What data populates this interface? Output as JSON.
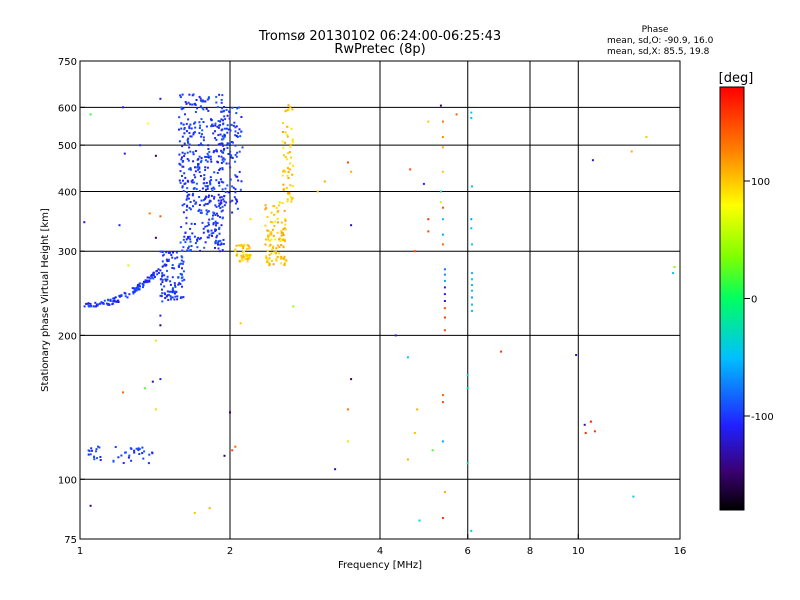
{
  "chart_data": {
    "type": "scatter",
    "title": "Tromsø 20130102 06:24:00-06:25:43",
    "subtitle": "RwPretec (8p)",
    "xlabel": "Frequency [MHz]",
    "ylabel": "Stationary phase Virtual Height [km]",
    "x_scale": "log",
    "y_scale": "log",
    "xlim": [
      1,
      16
    ],
    "ylim": [
      75,
      750
    ],
    "x_ticks": [
      1,
      2,
      4,
      6,
      8,
      10,
      16
    ],
    "y_ticks": [
      75,
      100,
      200,
      300,
      400,
      500,
      600,
      750
    ],
    "grid": true,
    "stats": {
      "heading": "Phase",
      "line_o": "mean, sd,O: -90.9, 16.0",
      "line_x": "mean, sd,X:  85.5, 19.8"
    },
    "colorbar": {
      "label": "[deg]",
      "range": [
        -180,
        180
      ],
      "ticks": [
        100,
        0,
        -100
      ],
      "tick_labels": [
        "100",
        "0",
        "-100"
      ]
    },
    "series": [
      {
        "phase_deg": -100,
        "clusters": [
          {
            "f_range": [
              1.02,
              1.45
            ],
            "h_range": [
              230,
              275
            ],
            "n": 120,
            "type": "trace"
          },
          {
            "f_range": [
              1.45,
              1.62
            ],
            "h_range": [
              235,
              300
            ],
            "n": 110,
            "type": "band"
          },
          {
            "f_range": [
              1.58,
              1.95
            ],
            "h_range": [
              300,
              640
            ],
            "n": 420,
            "type": "band"
          },
          {
            "f_range": [
              1.9,
              2.12
            ],
            "h_range": [
              360,
              600
            ],
            "n": 110,
            "type": "band"
          },
          {
            "f_range": [
              1.03,
              1.4
            ],
            "h_range": [
              108,
              117
            ],
            "n": 45,
            "type": "band"
          }
        ]
      },
      {
        "phase_deg": 100,
        "clusters": [
          {
            "f_range": [
              2.05,
              2.2
            ],
            "h_range": [
              285,
              310
            ],
            "n": 45,
            "type": "band"
          },
          {
            "f_range": [
              2.35,
              2.6
            ],
            "h_range": [
              280,
              380
            ],
            "n": 110,
            "type": "band"
          },
          {
            "f_range": [
              2.55,
              2.68
            ],
            "h_range": [
              380,
              620
            ],
            "n": 60,
            "type": "band"
          }
        ]
      }
    ],
    "scattered_points": [
      {
        "f": 1.05,
        "h": 580,
        "phase": 10
      },
      {
        "f": 1.22,
        "h": 600,
        "phase": -110
      },
      {
        "f": 1.23,
        "h": 480,
        "phase": -120
      },
      {
        "f": 1.32,
        "h": 500,
        "phase": -100
      },
      {
        "f": 1.37,
        "h": 555,
        "phase": 80
      },
      {
        "f": 1.42,
        "h": 475,
        "phase": -150
      },
      {
        "f": 1.45,
        "h": 625,
        "phase": -120
      },
      {
        "f": 1.02,
        "h": 345,
        "phase": -120
      },
      {
        "f": 1.2,
        "h": 340,
        "phase": -110
      },
      {
        "f": 1.38,
        "h": 360,
        "phase": 130
      },
      {
        "f": 1.45,
        "h": 355,
        "phase": 145
      },
      {
        "f": 1.42,
        "h": 320,
        "phase": -150
      },
      {
        "f": 1.25,
        "h": 280,
        "phase": 60
      },
      {
        "f": 1.45,
        "h": 220,
        "phase": -110
      },
      {
        "f": 1.45,
        "h": 210,
        "phase": -150
      },
      {
        "f": 1.42,
        "h": 195,
        "phase": 90
      },
      {
        "f": 1.4,
        "h": 160,
        "phase": -130
      },
      {
        "f": 1.45,
        "h": 162,
        "phase": -110
      },
      {
        "f": 1.35,
        "h": 155,
        "phase": 20
      },
      {
        "f": 1.22,
        "h": 152,
        "phase": 140
      },
      {
        "f": 1.42,
        "h": 140,
        "phase": 95
      },
      {
        "f": 1.05,
        "h": 88,
        "phase": -145
      },
      {
        "f": 1.7,
        "h": 85,
        "phase": 100
      },
      {
        "f": 1.82,
        "h": 87,
        "phase": 110
      },
      {
        "f": 1.95,
        "h": 112,
        "phase": -150
      },
      {
        "f": 2.0,
        "h": 138,
        "phase": -150
      },
      {
        "f": 2.02,
        "h": 115,
        "phase": 150
      },
      {
        "f": 2.05,
        "h": 117,
        "phase": 140
      },
      {
        "f": 2.1,
        "h": 212,
        "phase": 100
      },
      {
        "f": 2.2,
        "h": 350,
        "phase": 90
      },
      {
        "f": 2.68,
        "h": 230,
        "phase": 40
      },
      {
        "f": 3.0,
        "h": 400,
        "phase": 100
      },
      {
        "f": 3.1,
        "h": 420,
        "phase": 110
      },
      {
        "f": 3.45,
        "h": 460,
        "phase": 150
      },
      {
        "f": 3.5,
        "h": 440,
        "phase": 110
      },
      {
        "f": 3.5,
        "h": 340,
        "phase": -130
      },
      {
        "f": 3.5,
        "h": 162,
        "phase": -150
      },
      {
        "f": 3.45,
        "h": 140,
        "phase": 130
      },
      {
        "f": 3.45,
        "h": 120,
        "phase": 90
      },
      {
        "f": 3.25,
        "h": 105,
        "phase": -130
      },
      {
        "f": 4.3,
        "h": 200,
        "phase": -120
      },
      {
        "f": 4.55,
        "h": 180,
        "phase": -40
      },
      {
        "f": 4.55,
        "h": 110,
        "phase": 110
      },
      {
        "f": 4.75,
        "h": 140,
        "phase": 110
      },
      {
        "f": 4.7,
        "h": 125,
        "phase": 100
      },
      {
        "f": 4.6,
        "h": 445,
        "phase": 150
      },
      {
        "f": 4.7,
        "h": 300,
        "phase": 150
      },
      {
        "f": 4.9,
        "h": 415,
        "phase": -110
      },
      {
        "f": 5.0,
        "h": 350,
        "phase": 160
      },
      {
        "f": 5.0,
        "h": 560,
        "phase": 100
      },
      {
        "f": 5.0,
        "h": 330,
        "phase": 150
      },
      {
        "f": 5.1,
        "h": 115,
        "phase": 20
      },
      {
        "f": 4.8,
        "h": 82,
        "phase": -40
      },
      {
        "f": 5.3,
        "h": 605,
        "phase": -150
      },
      {
        "f": 5.35,
        "h": 560,
        "phase": 130
      },
      {
        "f": 5.35,
        "h": 520,
        "phase": 120
      },
      {
        "f": 5.35,
        "h": 495,
        "phase": 110
      },
      {
        "f": 5.35,
        "h": 440,
        "phase": 100
      },
      {
        "f": 5.3,
        "h": 400,
        "phase": -40
      },
      {
        "f": 5.3,
        "h": 380,
        "phase": 60
      },
      {
        "f": 5.35,
        "h": 370,
        "phase": 150
      },
      {
        "f": 5.35,
        "h": 310,
        "phase": 140
      },
      {
        "f": 5.35,
        "h": 350,
        "phase": -50
      },
      {
        "f": 5.35,
        "h": 325,
        "phase": -60
      },
      {
        "f": 5.4,
        "h": 275,
        "phase": -80
      },
      {
        "f": 5.4,
        "h": 268,
        "phase": -70
      },
      {
        "f": 5.4,
        "h": 260,
        "phase": -60
      },
      {
        "f": 5.4,
        "h": 252,
        "phase": -120
      },
      {
        "f": 5.4,
        "h": 244,
        "phase": -110
      },
      {
        "f": 5.4,
        "h": 236,
        "phase": -120
      },
      {
        "f": 5.4,
        "h": 228,
        "phase": 150
      },
      {
        "f": 5.4,
        "h": 218,
        "phase": 160
      },
      {
        "f": 5.4,
        "h": 205,
        "phase": 150
      },
      {
        "f": 5.35,
        "h": 150,
        "phase": 140
      },
      {
        "f": 5.35,
        "h": 145,
        "phase": 150
      },
      {
        "f": 5.35,
        "h": 120,
        "phase": -60
      },
      {
        "f": 5.4,
        "h": 94,
        "phase": 110
      },
      {
        "f": 5.35,
        "h": 83,
        "phase": 160
      },
      {
        "f": 5.7,
        "h": 580,
        "phase": 140
      },
      {
        "f": 6.1,
        "h": 585,
        "phase": -40
      },
      {
        "f": 6.1,
        "h": 570,
        "phase": -50
      },
      {
        "f": 6.12,
        "h": 410,
        "phase": -40
      },
      {
        "f": 6.1,
        "h": 350,
        "phase": -60
      },
      {
        "f": 6.1,
        "h": 335,
        "phase": -50
      },
      {
        "f": 6.12,
        "h": 310,
        "phase": -40
      },
      {
        "f": 6.12,
        "h": 270,
        "phase": -50
      },
      {
        "f": 6.12,
        "h": 262,
        "phase": -40
      },
      {
        "f": 6.12,
        "h": 255,
        "phase": -50
      },
      {
        "f": 6.12,
        "h": 248,
        "phase": -40
      },
      {
        "f": 6.12,
        "h": 240,
        "phase": -60
      },
      {
        "f": 6.12,
        "h": 232,
        "phase": -40
      },
      {
        "f": 6.12,
        "h": 225,
        "phase": -50
      },
      {
        "f": 6.0,
        "h": 165,
        "phase": -40
      },
      {
        "f": 6.0,
        "h": 155,
        "phase": -30
      },
      {
        "f": 6.0,
        "h": 108,
        "phase": -30
      },
      {
        "f": 6.1,
        "h": 78,
        "phase": -40
      },
      {
        "f": 7.0,
        "h": 185,
        "phase": 160
      },
      {
        "f": 9.9,
        "h": 182,
        "phase": -120
      },
      {
        "f": 10.3,
        "h": 130,
        "phase": -130
      },
      {
        "f": 10.35,
        "h": 125,
        "phase": 160
      },
      {
        "f": 10.6,
        "h": 132,
        "phase": 170
      },
      {
        "f": 10.8,
        "h": 126,
        "phase": 160
      },
      {
        "f": 10.7,
        "h": 465,
        "phase": -120
      },
      {
        "f": 12.8,
        "h": 485,
        "phase": 110
      },
      {
        "f": 13.7,
        "h": 520,
        "phase": 100
      },
      {
        "f": 12.9,
        "h": 92,
        "phase": -40
      },
      {
        "f": 15.5,
        "h": 270,
        "phase": -50
      },
      {
        "f": 15.6,
        "h": 278,
        "phase": 40
      }
    ]
  }
}
